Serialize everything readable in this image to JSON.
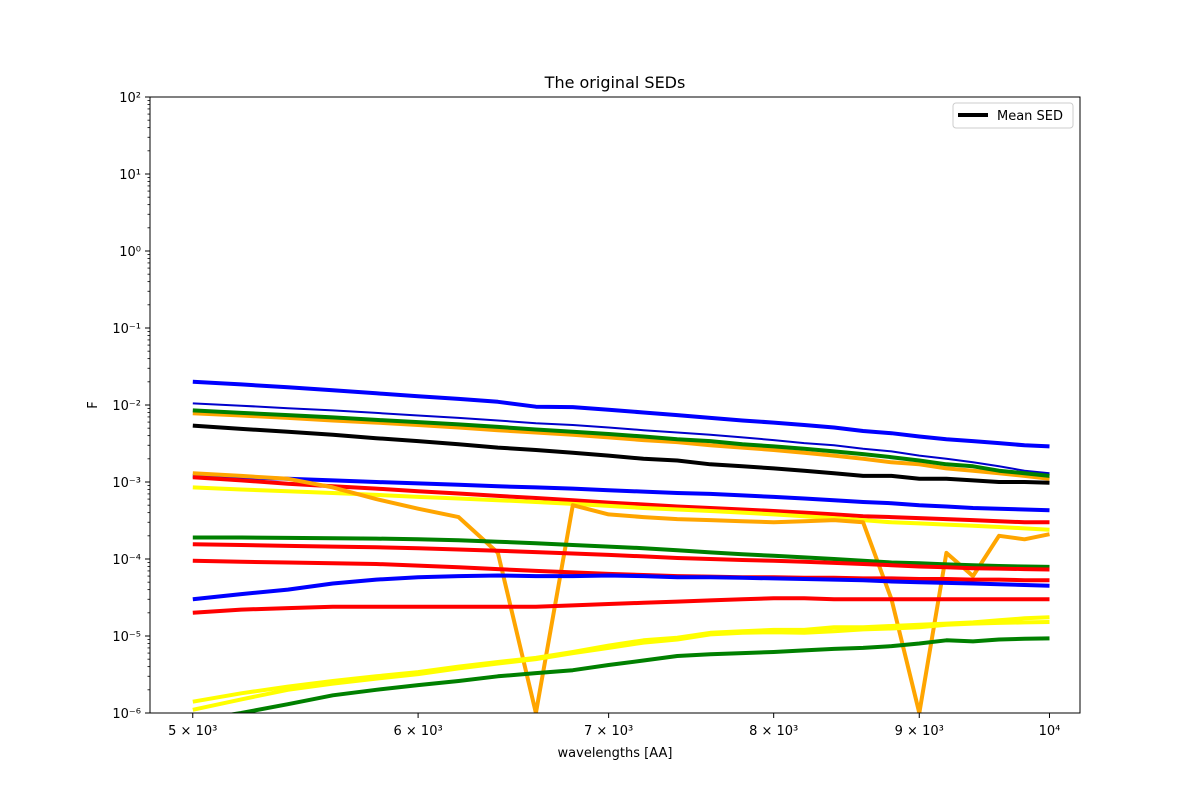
{
  "chart_data": {
    "type": "line",
    "title": "The original SEDs",
    "xlabel": "wavelengths [AA]",
    "ylabel": "F",
    "xscale": "log",
    "yscale": "log",
    "xlim": [
      4830,
      10250
    ],
    "ylim": [
      1e-06,
      100
    ],
    "grid": false,
    "legend": {
      "position": "top-right",
      "entries": [
        {
          "name": "Mean SED",
          "color": "#000000"
        }
      ]
    },
    "x_ticks": [
      {
        "value": 5000,
        "label": "5 × 10³"
      },
      {
        "value": 6000,
        "label": "6 × 10³"
      },
      {
        "value": 7000,
        "label": "7 × 10³"
      },
      {
        "value": 8000,
        "label": "8 × 10³"
      },
      {
        "value": 9000,
        "label": "9 × 10³"
      },
      {
        "value": 10000,
        "label": "10⁴"
      }
    ],
    "y_ticks": [
      {
        "value": 1e-06,
        "label": "10⁻⁶"
      },
      {
        "value": 1e-05,
        "label": "10⁻⁵"
      },
      {
        "value": 0.0001,
        "label": "10⁻⁴"
      },
      {
        "value": 0.001,
        "label": "10⁻³"
      },
      {
        "value": 0.01,
        "label": "10⁻²"
      },
      {
        "value": 0.1,
        "label": "10⁻¹"
      },
      {
        "value": 1,
        "label": "10⁰"
      },
      {
        "value": 10,
        "label": "10¹"
      },
      {
        "value": 100,
        "label": "10²"
      }
    ],
    "x": [
      5000,
      5200,
      5400,
      5600,
      5800,
      6000,
      6200,
      6400,
      6600,
      6800,
      7000,
      7200,
      7400,
      7600,
      7800,
      8000,
      8200,
      8400,
      8600,
      8800,
      9000,
      9200,
      9400,
      9600,
      9800,
      10000
    ],
    "series": [
      {
        "color": "#0000ff",
        "width": 4,
        "values": [
          0.02,
          0.0185,
          0.017,
          0.0155,
          0.0142,
          0.013,
          0.012,
          0.011,
          0.0095,
          0.0094,
          0.0087,
          0.008,
          0.0074,
          0.0068,
          0.0063,
          0.0059,
          0.0055,
          0.0051,
          0.0046,
          0.0043,
          0.0039,
          0.0036,
          0.0034,
          0.0032,
          0.003,
          0.0029
        ]
      },
      {
        "color": "#0000cc",
        "width": 2,
        "values": [
          0.0105,
          0.0098,
          0.0091,
          0.0085,
          0.0079,
          0.0073,
          0.0068,
          0.0063,
          0.0058,
          0.0055,
          0.0051,
          0.0047,
          0.0044,
          0.0041,
          0.0038,
          0.0035,
          0.0032,
          0.003,
          0.0027,
          0.0025,
          0.0022,
          0.002,
          0.0018,
          0.0016,
          0.0014,
          0.0013
        ]
      },
      {
        "color": "#ffa500",
        "width": 4,
        "values": [
          0.0078,
          0.0073,
          0.0068,
          0.0063,
          0.0059,
          0.0055,
          0.0051,
          0.0047,
          0.0044,
          0.0041,
          0.0038,
          0.0035,
          0.0033,
          0.003,
          0.0028,
          0.0026,
          0.0024,
          0.0022,
          0.002,
          0.0018,
          0.0017,
          0.0015,
          0.0014,
          0.0013,
          0.0012,
          0.0011
        ]
      },
      {
        "color": "#008000",
        "width": 4,
        "values": [
          0.0085,
          0.0079,
          0.0074,
          0.0069,
          0.0064,
          0.006,
          0.0056,
          0.0052,
          0.0048,
          0.0045,
          0.0042,
          0.0039,
          0.0036,
          0.0034,
          0.0031,
          0.0029,
          0.0027,
          0.0025,
          0.0023,
          0.0021,
          0.0019,
          0.0017,
          0.0016,
          0.0014,
          0.0013,
          0.0012
        ]
      },
      {
        "color": "#000000",
        "width": 4,
        "values": [
          0.0054,
          0.0049,
          0.0045,
          0.0041,
          0.0037,
          0.0034,
          0.0031,
          0.0028,
          0.0026,
          0.0024,
          0.0022,
          0.002,
          0.0019,
          0.0017,
          0.0016,
          0.0015,
          0.0014,
          0.0013,
          0.0012,
          0.0012,
          0.0011,
          0.0011,
          0.00105,
          0.001,
          0.001,
          0.00098
        ]
      },
      {
        "color": "#0000ff",
        "width": 4,
        "values": [
          0.0012,
          0.00115,
          0.0011,
          0.00105,
          0.001,
          0.00096,
          0.00092,
          0.00088,
          0.00085,
          0.00082,
          0.00078,
          0.00075,
          0.00072,
          0.0007,
          0.00067,
          0.00064,
          0.00061,
          0.00058,
          0.00055,
          0.00053,
          0.0005,
          0.00048,
          0.00046,
          0.00045,
          0.00044,
          0.00043
        ]
      },
      {
        "color": "#ff0000",
        "width": 4,
        "values": [
          0.00115,
          0.00105,
          0.00095,
          0.00088,
          0.00082,
          0.00076,
          0.00071,
          0.00066,
          0.00062,
          0.00058,
          0.00054,
          0.00051,
          0.00048,
          0.00046,
          0.00044,
          0.00042,
          0.0004,
          0.00038,
          0.00036,
          0.00035,
          0.00034,
          0.00033,
          0.00032,
          0.00031,
          0.0003,
          0.0003
        ]
      },
      {
        "color": "#ffff00",
        "width": 4,
        "values": [
          0.00085,
          0.0008,
          0.00076,
          0.00072,
          0.00068,
          0.00064,
          0.00061,
          0.00058,
          0.00055,
          0.00052,
          0.00049,
          0.00046,
          0.00044,
          0.00042,
          0.0004,
          0.00038,
          0.00036,
          0.00034,
          0.00032,
          0.0003,
          0.00029,
          0.00028,
          0.00027,
          0.00026,
          0.00025,
          0.00024
        ]
      },
      {
        "color": "#ffa500",
        "width": 4,
        "values": [
          0.0013,
          0.0012,
          0.0011,
          0.00085,
          0.0006,
          0.00045,
          0.00035,
          0.00012,
          1e-06,
          0.0005,
          0.00038,
          0.00035,
          0.00033,
          0.00032,
          0.00031,
          0.0003,
          0.00031,
          0.00032,
          0.0003,
          3e-05,
          1e-06,
          0.00012,
          6e-05,
          0.0002,
          0.00018,
          0.00021
        ]
      },
      {
        "color": "#008000",
        "width": 4,
        "values": [
          0.00019,
          0.00019,
          0.000188,
          0.000186,
          0.000184,
          0.00018,
          0.000175,
          0.000168,
          0.00016,
          0.000152,
          0.000145,
          0.000138,
          0.00013,
          0.000122,
          0.000115,
          0.00011,
          0.000105,
          0.0001,
          9.5e-05,
          9e-05,
          8.8e-05,
          8.5e-05,
          8.3e-05,
          8.1e-05,
          8e-05,
          7.9e-05
        ]
      },
      {
        "color": "#ff0000",
        "width": 4,
        "values": [
          0.000155,
          0.000152,
          0.000148,
          0.000145,
          0.000142,
          0.000138,
          0.000133,
          0.000128,
          0.000123,
          0.000118,
          0.000113,
          0.000108,
          0.000103,
          0.0001,
          9.7e-05,
          9.5e-05,
          9.2e-05,
          8.9e-05,
          8.6e-05,
          8.3e-05,
          8e-05,
          7.8e-05,
          7.6e-05,
          7.5e-05,
          7.4e-05,
          7.3e-05
        ]
      },
      {
        "color": "#ff0000",
        "width": 4,
        "values": [
          9.5e-05,
          9.2e-05,
          9e-05,
          8.8e-05,
          8.6e-05,
          8.2e-05,
          7.8e-05,
          7.4e-05,
          7e-05,
          6.7e-05,
          6.4e-05,
          6.2e-05,
          6e-05,
          5.9e-05,
          5.8e-05,
          5.8e-05,
          5.7e-05,
          5.7e-05,
          5.6e-05,
          5.6e-05,
          5.5e-05,
          5.5e-05,
          5.4e-05,
          5.4e-05,
          5.3e-05,
          5.3e-05
        ]
      },
      {
        "color": "#0000ff",
        "width": 4,
        "values": [
          3e-05,
          3.5e-05,
          4e-05,
          4.8e-05,
          5.4e-05,
          5.8e-05,
          6e-05,
          6.1e-05,
          6e-05,
          6e-05,
          6.1e-05,
          6e-05,
          5.8e-05,
          5.8e-05,
          5.7e-05,
          5.6e-05,
          5.5e-05,
          5.4e-05,
          5.3e-05,
          5.1e-05,
          5e-05,
          4.9e-05,
          4.8e-05,
          4.7e-05,
          4.6e-05,
          4.5e-05
        ]
      },
      {
        "color": "#ff0000",
        "width": 4,
        "values": [
          2e-05,
          2.2e-05,
          2.3e-05,
          2.4e-05,
          2.4e-05,
          2.4e-05,
          2.4e-05,
          2.4e-05,
          2.4e-05,
          2.5e-05,
          2.6e-05,
          2.7e-05,
          2.8e-05,
          2.9e-05,
          3e-05,
          3.1e-05,
          3.1e-05,
          3e-05,
          3e-05,
          3e-05,
          3e-05,
          3e-05,
          3e-05,
          3e-05,
          3e-05,
          3e-05
        ]
      },
      {
        "color": "#ffff00",
        "width": 4,
        "values": [
          1.4e-06,
          1.8e-06,
          2.2e-06,
          2.6e-06,
          3e-06,
          3.4e-06,
          4e-06,
          4.6e-06,
          5.2e-06,
          6.2e-06,
          7.5e-06,
          8.8e-06,
          9.5e-06,
          1.1e-05,
          1.15e-05,
          1.2e-05,
          1.2e-05,
          1.3e-05,
          1.3e-05,
          1.35e-05,
          1.4e-05,
          1.45e-05,
          1.5e-05,
          1.6e-05,
          1.7e-05,
          1.75e-05
        ]
      },
      {
        "color": "#ffff00",
        "width": 4,
        "values": [
          1.1e-06,
          1.5e-06,
          2e-06,
          2.4e-06,
          2.8e-06,
          3.2e-06,
          3.8e-06,
          4.4e-06,
          5e-06,
          6e-06,
          7e-06,
          8.2e-06,
          9e-06,
          1.05e-05,
          1.1e-05,
          1.12e-05,
          1.1e-05,
          1.15e-05,
          1.22e-05,
          1.25e-05,
          1.3e-05,
          1.4e-05,
          1.45e-05,
          1.48e-05,
          1.5e-05,
          1.52e-05
        ]
      },
      {
        "color": "#008000",
        "width": 4,
        "values": [
          8e-07,
          1e-06,
          1.3e-06,
          1.7e-06,
          2e-06,
          2.3e-06,
          2.6e-06,
          3e-06,
          3.3e-06,
          3.6e-06,
          4.2e-06,
          4.8e-06,
          5.5e-06,
          5.8e-06,
          6e-06,
          6.2e-06,
          6.5e-06,
          6.8e-06,
          7e-06,
          7.4e-06,
          8e-06,
          8.8e-06,
          8.5e-06,
          9e-06,
          9.2e-06,
          9.3e-06
        ]
      }
    ]
  }
}
